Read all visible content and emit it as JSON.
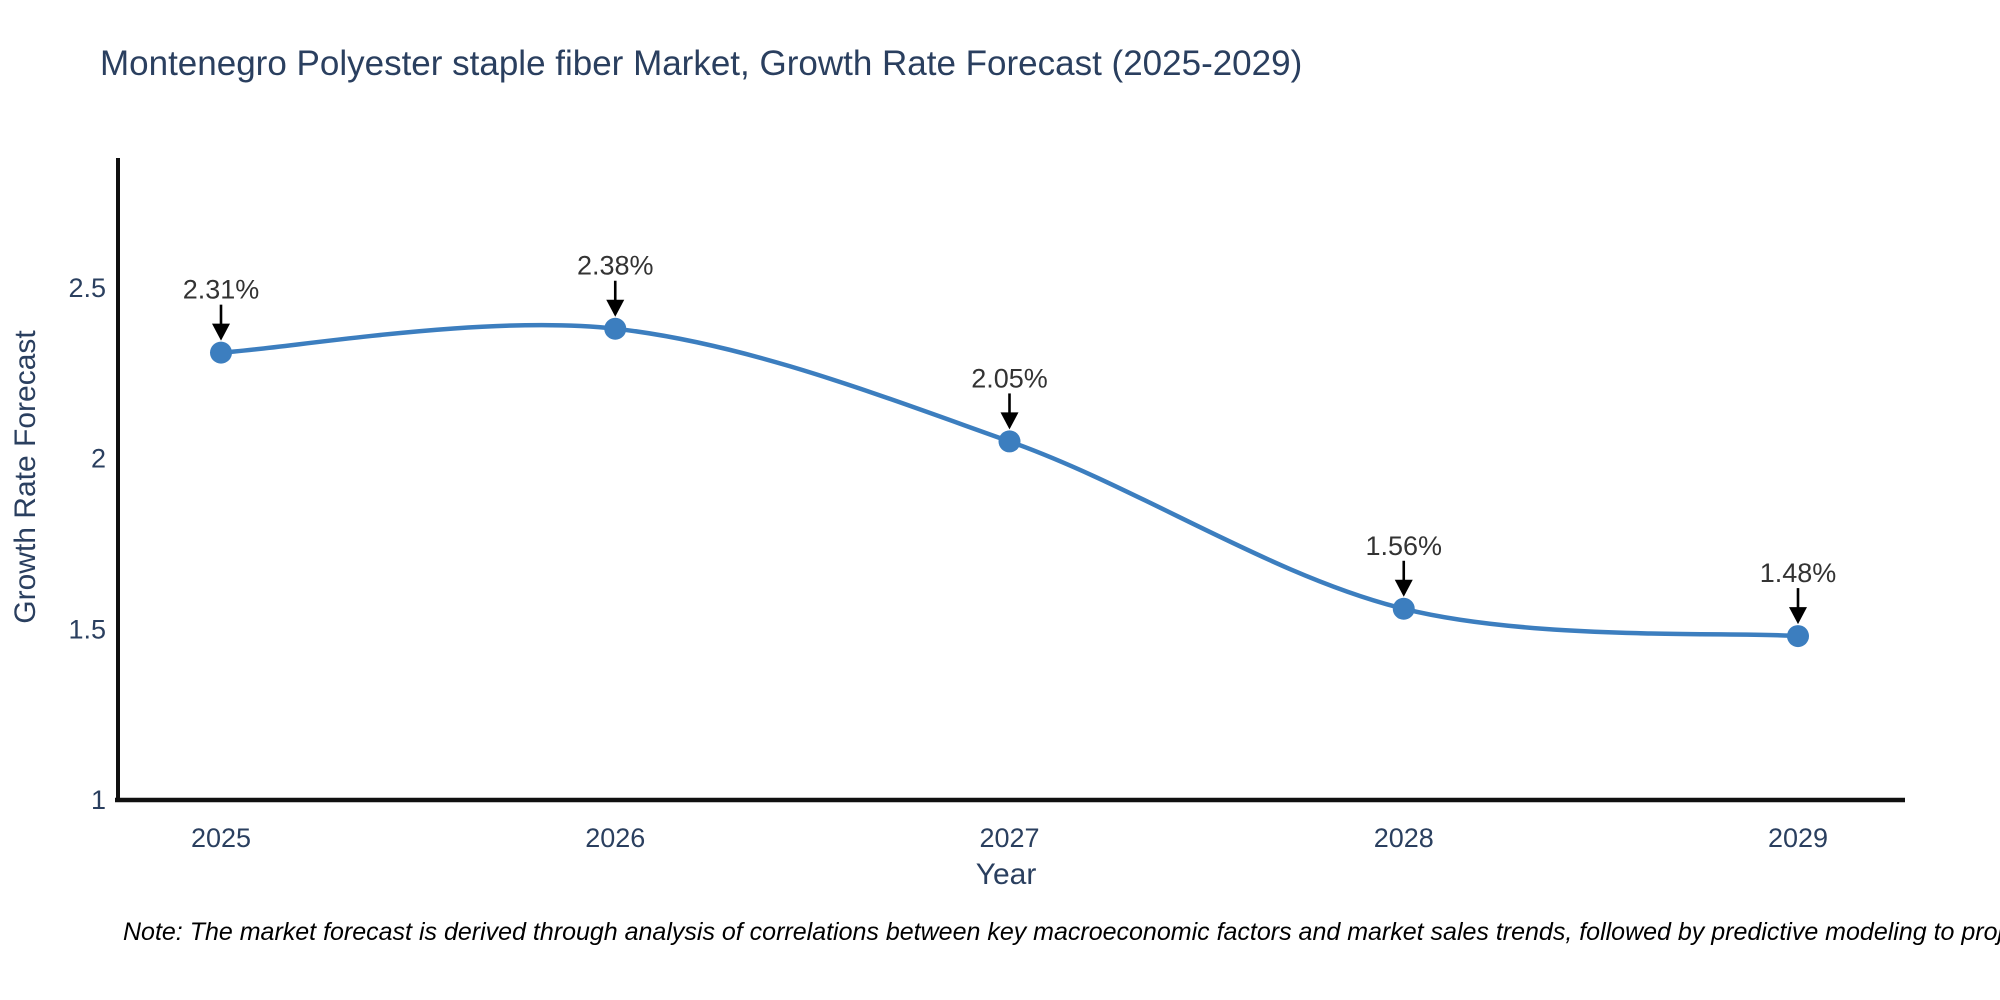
{
  "chart_data": {
    "type": "line",
    "title": "Montenegro Polyester staple fiber Market, Growth Rate Forecast (2025-2029)",
    "xlabel": "Year",
    "ylabel": "Growth Rate Forecast",
    "categories": [
      "2025",
      "2026",
      "2027",
      "2028",
      "2029"
    ],
    "series": [
      {
        "name": "Growth Rate Forecast",
        "values": [
          2.31,
          2.38,
          2.05,
          1.56,
          1.48
        ],
        "point_labels": [
          "2.31%",
          "2.38%",
          "2.05%",
          "1.56%",
          "1.48%"
        ]
      }
    ],
    "yticks": [
      "2.5",
      "2",
      "1.5",
      "1"
    ],
    "ytick_values": [
      2.5,
      2,
      1.5,
      1
    ],
    "ylim": [
      1,
      2.88
    ],
    "line_shape": "spline",
    "grid": false,
    "legend_position": "none",
    "colors": {
      "line": "#3c7ebf",
      "marker": "#3c7ebf",
      "axis": "#101010",
      "text": "#2a3f5f",
      "annotation": "#333333",
      "arrow": "#000000",
      "background": "#ffffff"
    }
  },
  "note": "Note: The market forecast is derived through analysis of correlations between key macroeconomic factors and market sales trends, followed by predictive modeling to project future sales"
}
